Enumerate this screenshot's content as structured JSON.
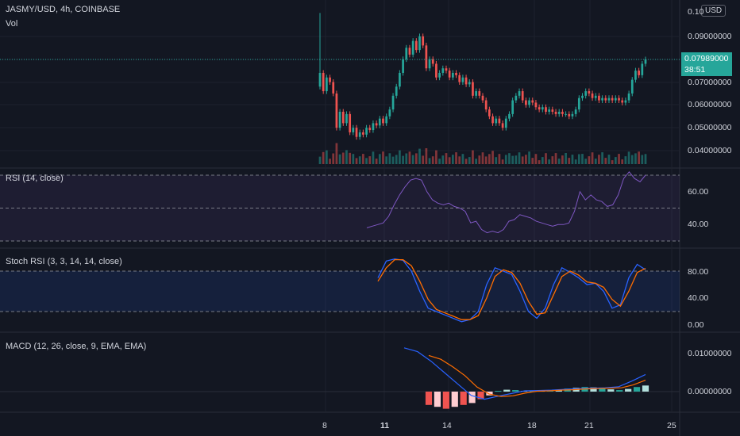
{
  "header": {
    "symbol_title": "JASMY/USD, 4h, COINBASE",
    "vol_label": "Vol",
    "currency_badge": "USD"
  },
  "panes": {
    "rsi_title": "RSI (14, close)",
    "stoch_title": "Stoch RSI (3, 3, 14, 14, close)",
    "macd_title": "MACD (12, 26, close, 9, EMA, EMA)"
  },
  "price_axis": {
    "ticks": [
      "0.10000000",
      "0.09000000",
      "0.08000000",
      "0.07000000",
      "0.06000000",
      "0.05000000",
      "0.04000000"
    ],
    "top_partial": "0.10",
    "current_price": "0.07989000",
    "countdown": "38:51"
  },
  "rsi_axis": {
    "ticks": [
      "60.00",
      "40.00"
    ]
  },
  "stoch_axis": {
    "ticks": [
      "80.00",
      "40.00",
      "0.00"
    ]
  },
  "macd_axis": {
    "ticks": [
      "0.01000000",
      "0.00000000"
    ]
  },
  "time_axis": {
    "ticks": [
      "8",
      "11",
      "14",
      "18",
      "21",
      "25"
    ]
  },
  "colors": {
    "background": "#131722",
    "up": "#26a69a",
    "down": "#ef5350",
    "rsi_line": "#7e57c2",
    "stoch_k": "#2962ff",
    "stoch_d": "#ff6d00",
    "macd_line": "#2962ff",
    "signal_line": "#ff6d00"
  },
  "chart_data": [
    {
      "type": "candlestick",
      "title": "JASMY/USD, 4h, COINBASE",
      "ylim": [
        0.035,
        0.105
      ],
      "x_ticks": [
        "8",
        "11",
        "14",
        "18",
        "21",
        "25"
      ],
      "close": [
        0.074,
        0.066,
        0.072,
        0.07,
        0.065,
        0.05,
        0.057,
        0.052,
        0.056,
        0.048,
        0.05,
        0.046,
        0.048,
        0.047,
        0.05,
        0.049,
        0.052,
        0.051,
        0.054,
        0.052,
        0.055,
        0.058,
        0.064,
        0.068,
        0.074,
        0.08,
        0.085,
        0.082,
        0.088,
        0.084,
        0.09,
        0.086,
        0.076,
        0.08,
        0.078,
        0.072,
        0.074,
        0.076,
        0.075,
        0.072,
        0.074,
        0.073,
        0.07,
        0.072,
        0.069,
        0.07,
        0.064,
        0.066,
        0.064,
        0.062,
        0.058,
        0.055,
        0.052,
        0.054,
        0.052,
        0.05,
        0.054,
        0.056,
        0.062,
        0.064,
        0.066,
        0.062,
        0.06,
        0.062,
        0.061,
        0.059,
        0.058,
        0.059,
        0.057,
        0.058,
        0.057,
        0.056,
        0.057,
        0.056,
        0.056,
        0.055,
        0.056,
        0.058,
        0.063,
        0.064,
        0.066,
        0.065,
        0.063,
        0.064,
        0.062,
        0.063,
        0.062,
        0.063,
        0.062,
        0.063,
        0.062,
        0.061,
        0.062,
        0.065,
        0.071,
        0.075,
        0.073,
        0.078,
        0.0799
      ],
      "volume_note": "volume bars colored by candle direction"
    },
    {
      "type": "line",
      "title": "RSI (14, close)",
      "ylim": [
        30,
        75
      ],
      "bands": [
        70,
        50,
        30
      ],
      "y_ticks": [
        60,
        40
      ],
      "values": [
        38,
        39,
        40,
        41,
        45,
        52,
        58,
        63,
        67,
        68,
        67,
        60,
        55,
        53,
        52,
        53,
        51,
        50,
        48,
        41,
        42,
        37,
        35,
        36,
        35,
        37,
        42,
        43,
        46,
        45,
        44,
        42,
        41,
        40,
        39,
        40,
        40,
        41,
        48,
        60,
        55,
        58,
        55,
        54,
        51,
        52,
        58,
        68,
        72,
        68,
        66,
        70
      ]
    },
    {
      "type": "line",
      "title": "Stoch RSI (3, 3, 14, 14, close)",
      "ylim": [
        -5,
        105
      ],
      "bands": [
        80,
        20
      ],
      "y_ticks": [
        80,
        40,
        0
      ],
      "series": [
        {
          "values": [
            70,
            95,
            98,
            96,
            80,
            50,
            25,
            20,
            15,
            10,
            5,
            8,
            20,
            60,
            85,
            80,
            75,
            50,
            20,
            10,
            25,
            60,
            85,
            78,
            70,
            60,
            62,
            50,
            25,
            30,
            70,
            90,
            82
          ]
        },
        {
          "values": [
            65,
            85,
            97,
            97,
            88,
            65,
            38,
            23,
            18,
            13,
            8,
            8,
            14,
            40,
            72,
            82,
            78,
            62,
            35,
            16,
            18,
            45,
            72,
            80,
            74,
            64,
            62,
            56,
            38,
            28,
            50,
            78,
            84
          ]
        }
      ]
    },
    {
      "type": "line",
      "title": "MACD (12, 26, close, 9, EMA, EMA)",
      "ylim": [
        -0.003,
        0.0125
      ],
      "y_ticks": [
        0.01,
        0.0
      ],
      "series": [
        {
          "values": [
            0.0115,
            0.0105,
            0.008,
            0.005,
            0.002,
            -0.001,
            -0.002,
            -0.0012,
            -0.0005,
            0.0002,
            0.0003,
            0.0004,
            0.0006,
            0.0008,
            0.0009,
            0.001,
            0.0013,
            0.0028,
            0.0045
          ]
        },
        {
          "values": [
            0.0095,
            0.0085,
            0.0065,
            0.0042,
            0.0012,
            -0.0006,
            -0.0013,
            -0.0011,
            -0.0004,
            0.0001,
            0.0002,
            0.0004,
            0.0005,
            0.0007,
            0.0008,
            0.0009,
            0.001,
            0.0018,
            0.003
          ]
        }
      ],
      "histogram": [
        -0.0035,
        -0.004,
        -0.0045,
        -0.004,
        -0.0035,
        -0.003,
        -0.002,
        -0.001,
        0.0002,
        0.0005,
        0.0004,
        0.0002,
        0.0001,
        0.0002,
        0.0003,
        0.0005,
        0.0008,
        0.001,
        0.0012,
        0.0011,
        0.0009,
        0.0006,
        0.0004,
        0.0007,
        0.0012,
        0.0016
      ]
    }
  ]
}
